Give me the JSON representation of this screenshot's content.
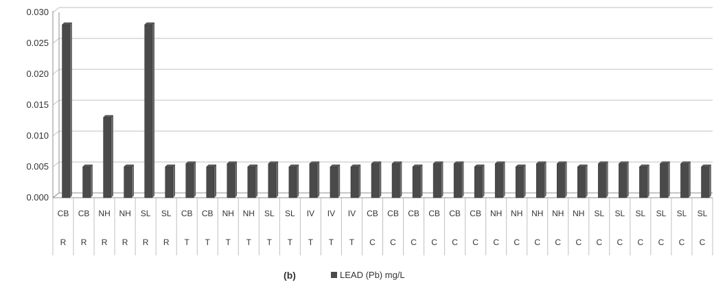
{
  "chart_data": {
    "type": "bar",
    "panel_label": "(b)",
    "legend": "LEAD (Pb) mg/L",
    "series": [
      {
        "name": "LEAD (Pb) mg/L",
        "values": [
          0.028,
          0.005,
          0.013,
          0.005,
          0.028,
          0.005,
          0.0055,
          0.005,
          0.0055,
          0.005,
          0.0055,
          0.005,
          0.0055,
          0.005,
          0.005,
          0.0055,
          0.0055,
          0.005,
          0.0055,
          0.0055,
          0.005,
          0.0055,
          0.005,
          0.0055,
          0.0055,
          0.005,
          0.0055,
          0.0055,
          0.005,
          0.0055,
          0.0055,
          0.005
        ]
      }
    ],
    "categories_level1": [
      "CB",
      "CB",
      "NH",
      "NH",
      "SL",
      "SL",
      "CB",
      "CB",
      "NH",
      "NH",
      "SL",
      "SL",
      "IV",
      "IV",
      "IV",
      "CB",
      "CB",
      "CB",
      "CB",
      "CB",
      "CB",
      "NH",
      "NH",
      "NH",
      "NH",
      "NH",
      "SL",
      "SL",
      "SL",
      "SL",
      "SL",
      "SL"
    ],
    "categories_level2": [
      "R",
      "R",
      "R",
      "R",
      "R",
      "R",
      "T",
      "T",
      "T",
      "T",
      "T",
      "T",
      "T",
      "T",
      "T",
      "C",
      "C",
      "C",
      "C",
      "C",
      "C",
      "C",
      "C",
      "C",
      "C",
      "C",
      "C",
      "C",
      "C",
      "C",
      "C",
      "C"
    ],
    "yticks": [
      "0.000",
      "0.005",
      "0.010",
      "0.015",
      "0.020",
      "0.025",
      "0.030"
    ],
    "ylim": [
      0,
      0.03
    ],
    "grid": true,
    "legend_position": "bottom",
    "colors": {
      "bar": "#4a4a4a",
      "bar_side": "#6e6e6e",
      "grid": "#bfbfbf",
      "axis": "#8c8c8c"
    }
  }
}
